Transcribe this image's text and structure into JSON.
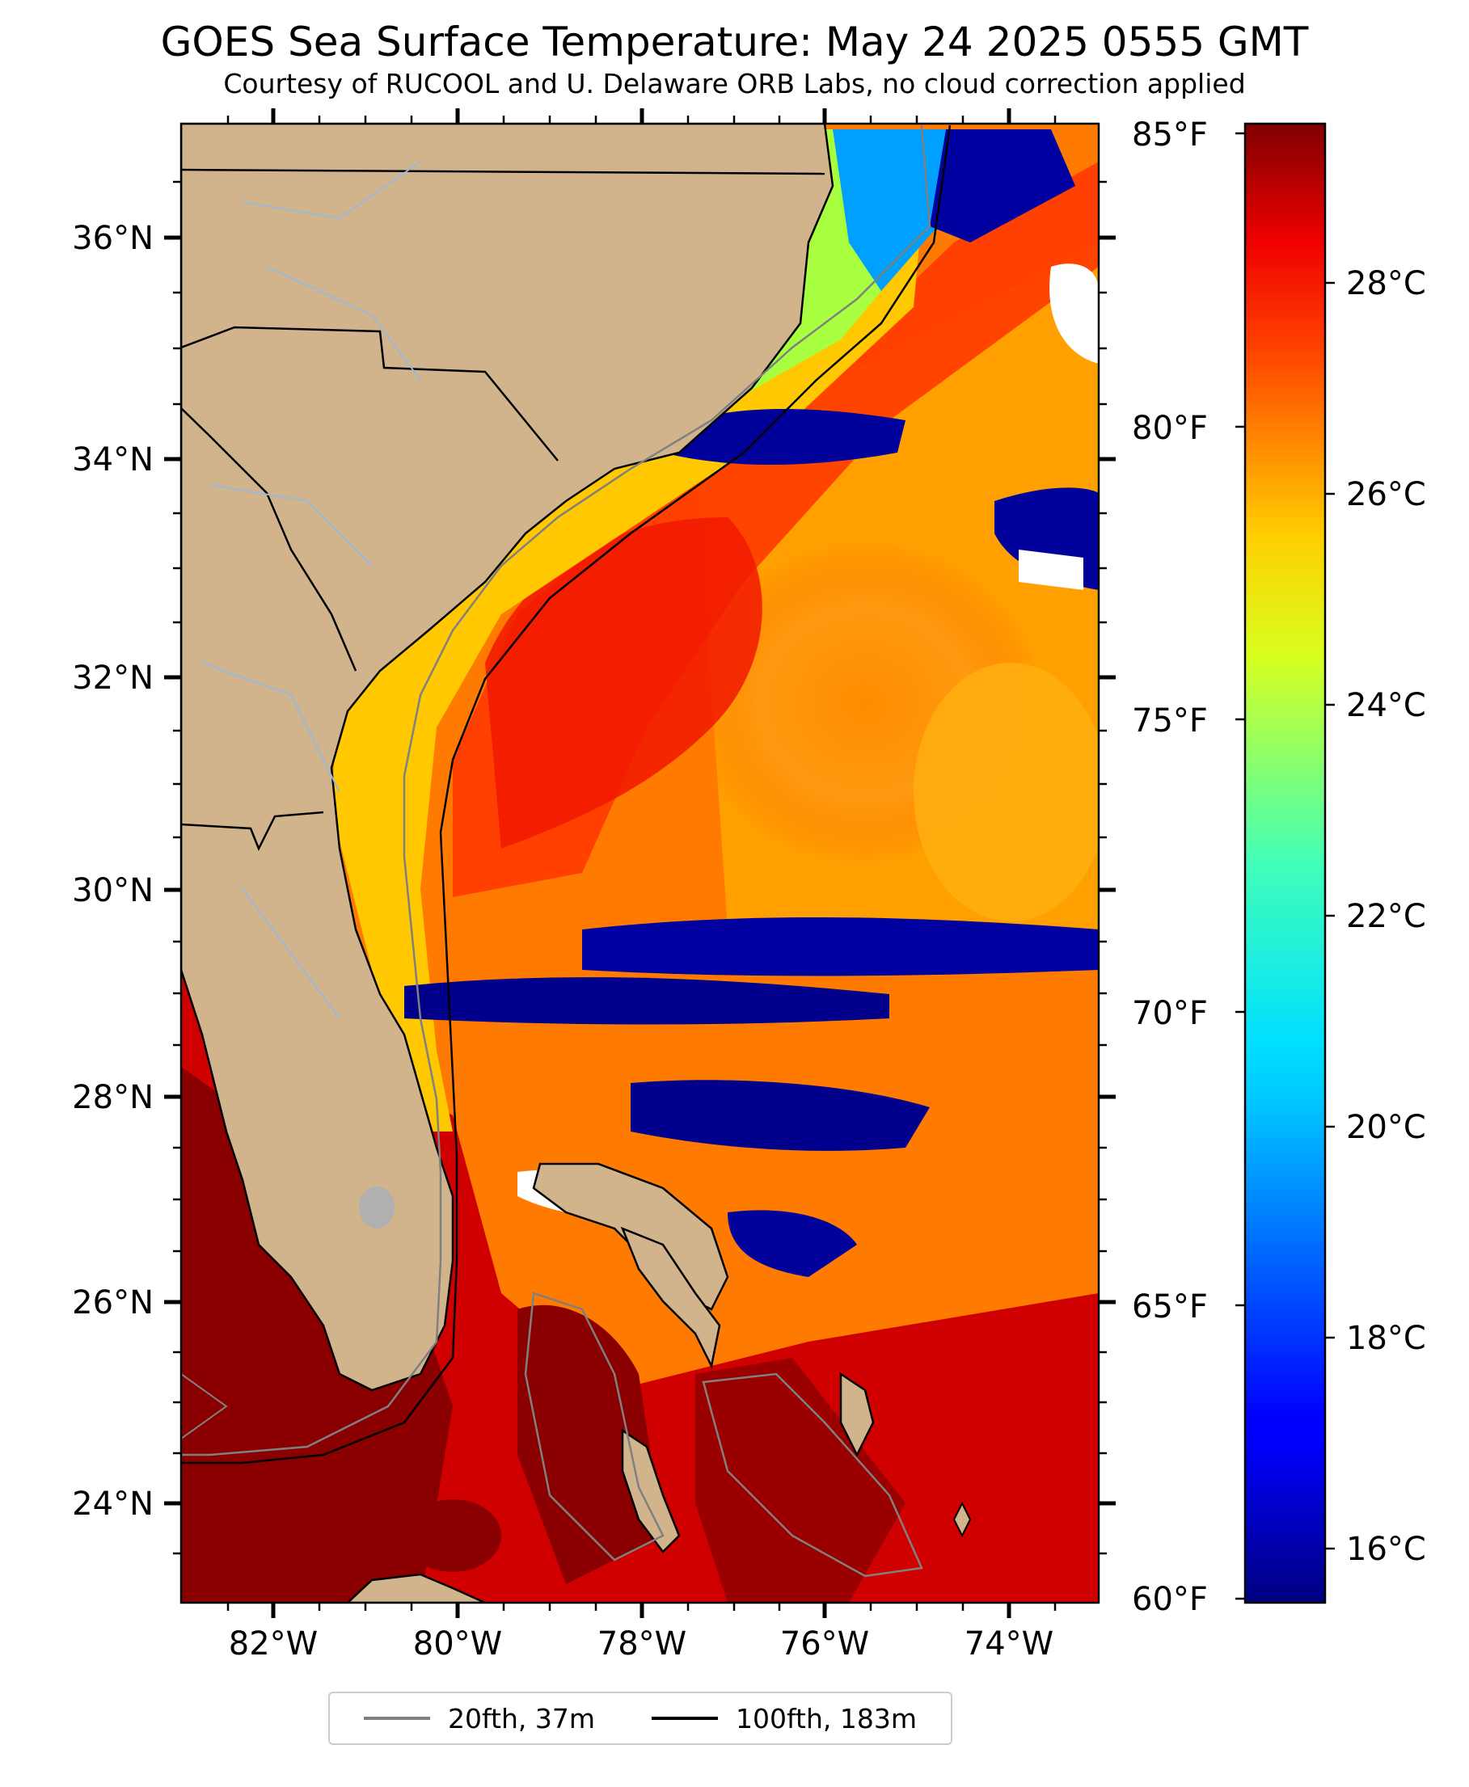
{
  "title": "GOES Sea Surface Temperature: May 24 2025 0555 GMT",
  "subtitle": "Courtesy of RUCOOL and U. Delaware ORB Labs, no cloud correction applied",
  "map": {
    "lat_labels": [
      "36°N",
      "34°N",
      "32°N",
      "30°N",
      "28°N",
      "26°N",
      "24°N"
    ],
    "lon_labels": [
      "82°W",
      "80°W",
      "78°W",
      "76°W",
      "74°W"
    ],
    "land_color": "#d2b48c",
    "ocean_warm_color": "#ff5a00",
    "gulf_stream_color": "#ff2800",
    "shelf_color": "#ffd21e",
    "cold_color": "#00008c",
    "deep_warm_color": "#8c0000"
  },
  "colorbar": {
    "fahrenheit_labels": [
      "85°F",
      "80°F",
      "75°F",
      "70°F",
      "65°F",
      "60°F"
    ],
    "celsius_labels": [
      "28°C",
      "26°C",
      "24°C",
      "22°C",
      "20°C",
      "18°C",
      "16°C"
    ],
    "colormap": "jet"
  },
  "legend": {
    "items": [
      {
        "label": "20fth, 37m",
        "color": "#808080"
      },
      {
        "label": "100fth, 183m",
        "color": "#000000"
      }
    ]
  }
}
